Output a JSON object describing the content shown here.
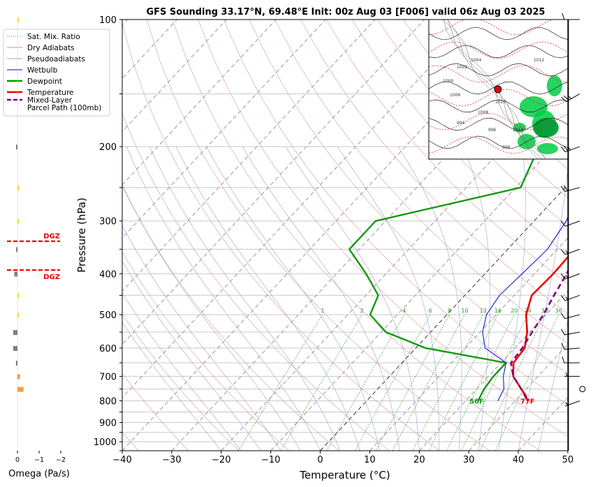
{
  "chart_data": {
    "type": "line",
    "title": "GFS Sounding 33.17°N, 69.48°E Init: 00z Aug 03 [F006] valid 06z Aug 03 2025",
    "xlabel": "Temperature (°C)",
    "ylabel": "Pressure (hPa)",
    "xlim": [
      -40,
      50
    ],
    "ylim": [
      1050,
      100
    ],
    "y_scale": "log",
    "grid": true,
    "x_ticks": [
      "−40",
      "−30",
      "−20",
      "−10",
      "0",
      "10",
      "20",
      "30",
      "40",
      "50"
    ],
    "y_ticks": [
      "100",
      "200",
      "300",
      "400",
      "500",
      "600",
      "700",
      "800",
      "900",
      "1000"
    ],
    "legend_position": "upper-left",
    "legend": [
      {
        "label": "Sat. Mix. Ratio",
        "color": "#2ca02c",
        "style": "dotted"
      },
      {
        "label": "Dry Adiabats",
        "color": "#d06070",
        "style": "solid-thin"
      },
      {
        "label": "Pseudoadiabats",
        "color": "#8080d0",
        "style": "solid-thin"
      },
      {
        "label": "Wetbulb",
        "color": "#0000cc",
        "style": "solid"
      },
      {
        "label": "Dewpoint",
        "color": "#009900",
        "style": "solid-thick"
      },
      {
        "label": "Temperature",
        "color": "#ee0000",
        "style": "solid-thick"
      },
      {
        "label": "Mixed-Layer\nParcel Path (100mb)",
        "color": "#800080",
        "style": "dashed"
      }
    ],
    "mixing_ratio_labels": [
      "1",
      "2",
      "4",
      "6",
      "8",
      "10",
      "13",
      "16",
      "20",
      "24",
      "30",
      "36"
    ],
    "surface_labels": {
      "temperature": "77F",
      "dewpoint": "56F"
    },
    "dgz_label": "DGZ",
    "omega": {
      "xlabel": "Omega (Pa/s)",
      "x_ticks": [
        "0",
        "−1",
        "−2"
      ],
      "levels_hpa": [
        100,
        200,
        250,
        300,
        350,
        400,
        450,
        500,
        550,
        600,
        650,
        700,
        750
      ],
      "values": [
        -0.01,
        0.05,
        -0.08,
        -0.05,
        0.06,
        0.15,
        -0.03,
        -0.02,
        0.2,
        0.2,
        0.07,
        -0.12,
        -0.28
      ]
    },
    "dgz_hpa": [
      335,
      392
    ],
    "series": [
      {
        "name": "Temperature",
        "points": [
          [
            100,
            -11
          ],
          [
            150,
            -7.5
          ],
          [
            200,
            -3
          ],
          [
            250,
            3.5
          ],
          [
            300,
            10
          ],
          [
            350,
            13.5
          ],
          [
            400,
            13.8
          ],
          [
            450,
            13.5
          ],
          [
            500,
            16
          ],
          [
            550,
            19.5
          ],
          [
            600,
            22
          ],
          [
            650,
            22.5
          ],
          [
            700,
            25
          ],
          [
            750,
            29
          ],
          [
            775,
            31
          ],
          [
            800,
            32.5
          ]
        ]
      },
      {
        "name": "Dewpoint",
        "points": [
          [
            100,
            -11.5
          ],
          [
            150,
            -16.5
          ],
          [
            200,
            -13
          ],
          [
            250,
            -9
          ],
          [
            300,
            -32
          ],
          [
            350,
            -32
          ],
          [
            400,
            -24
          ],
          [
            450,
            -17.5
          ],
          [
            500,
            -15.5
          ],
          [
            550,
            -9
          ],
          [
            600,
            2
          ],
          [
            650,
            21
          ],
          [
            700,
            21
          ],
          [
            750,
            21.5
          ],
          [
            800,
            22.5
          ]
        ]
      },
      {
        "name": "Wetbulb",
        "points": [
          [
            200,
            -2.5
          ],
          [
            250,
            3
          ],
          [
            300,
            6.5
          ],
          [
            350,
            8
          ],
          [
            400,
            7.5
          ],
          [
            450,
            7
          ],
          [
            500,
            8
          ],
          [
            550,
            10.5
          ],
          [
            600,
            14
          ],
          [
            650,
            21
          ],
          [
            700,
            23
          ],
          [
            750,
            25.5
          ],
          [
            800,
            26.5
          ]
        ]
      },
      {
        "name": "Mixed-Layer Parcel Path (100mb)",
        "points": [
          [
            100,
            -25
          ],
          [
            150,
            -15
          ],
          [
            200,
            -5.5
          ],
          [
            250,
            2.5
          ],
          [
            300,
            9
          ],
          [
            350,
            14.5
          ],
          [
            400,
            16.5
          ],
          [
            450,
            18
          ],
          [
            500,
            19.5
          ],
          [
            550,
            20.5
          ],
          [
            600,
            21.5
          ],
          [
            650,
            22
          ],
          [
            700,
            25
          ],
          [
            750,
            29
          ],
          [
            800,
            32.5
          ]
        ]
      }
    ],
    "wind_barbs_kt": [
      {
        "p": 100,
        "speed": 10,
        "dir": 270
      },
      {
        "p": 150,
        "speed": 25,
        "dir": 240
      },
      {
        "p": 200,
        "speed": 25,
        "dir": 250
      },
      {
        "p": 250,
        "speed": 20,
        "dir": 255
      },
      {
        "p": 300,
        "speed": 10,
        "dir": 250
      },
      {
        "p": 350,
        "speed": 15,
        "dir": 250
      },
      {
        "p": 400,
        "speed": 15,
        "dir": 250
      },
      {
        "p": 450,
        "speed": 15,
        "dir": 250
      },
      {
        "p": 500,
        "speed": 10,
        "dir": 255
      },
      {
        "p": 550,
        "speed": 10,
        "dir": 260
      },
      {
        "p": 600,
        "speed": 10,
        "dir": 265
      },
      {
        "p": 650,
        "speed": 10,
        "dir": 270
      },
      {
        "p": 700,
        "speed": 5,
        "dir": 270
      },
      {
        "p": 750,
        "speed": 0,
        "dir": 0
      },
      {
        "p": 800,
        "speed": 5,
        "dir": 250
      }
    ],
    "inset_map_isobar_labels": [
      "1000",
      "1002",
      "1004",
      "1006",
      "1008",
      "1010",
      "1012",
      "1014",
      "998",
      "996",
      "994"
    ]
  }
}
